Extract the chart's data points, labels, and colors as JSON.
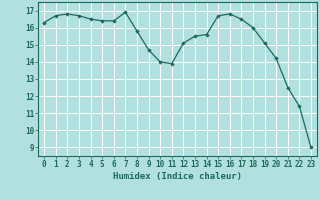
{
  "x": [
    0,
    1,
    2,
    3,
    4,
    5,
    6,
    7,
    8,
    9,
    10,
    11,
    12,
    13,
    14,
    15,
    16,
    17,
    18,
    19,
    20,
    21,
    22,
    23
  ],
  "y": [
    16.3,
    16.7,
    16.8,
    16.7,
    16.5,
    16.4,
    16.4,
    16.9,
    15.8,
    14.7,
    14.0,
    13.9,
    15.1,
    15.5,
    15.6,
    16.7,
    16.8,
    16.5,
    16.0,
    15.1,
    14.2,
    12.5,
    11.4,
    9.0
  ],
  "line_color": "#1a6b5a",
  "marker_color": "#1a6b5a",
  "bg_color": "#b2e0e0",
  "grid_major_color": "#ffffff",
  "grid_minor_color": "#d4eded",
  "xlabel": "Humidex (Indice chaleur)",
  "ylim": [
    8.5,
    17.5
  ],
  "xlim": [
    -0.5,
    23.5
  ],
  "yticks": [
    9,
    10,
    11,
    12,
    13,
    14,
    15,
    16,
    17
  ],
  "xticks": [
    0,
    1,
    2,
    3,
    4,
    5,
    6,
    7,
    8,
    9,
    10,
    11,
    12,
    13,
    14,
    15,
    16,
    17,
    18,
    19,
    20,
    21,
    22,
    23
  ],
  "xtick_labels": [
    "0",
    "1",
    "2",
    "3",
    "4",
    "5",
    "6",
    "7",
    "8",
    "9",
    "10",
    "11",
    "12",
    "13",
    "14",
    "15",
    "16",
    "17",
    "18",
    "19",
    "20",
    "21",
    "22",
    "23"
  ],
  "label_fontsize": 6.5,
  "tick_fontsize": 5.5
}
